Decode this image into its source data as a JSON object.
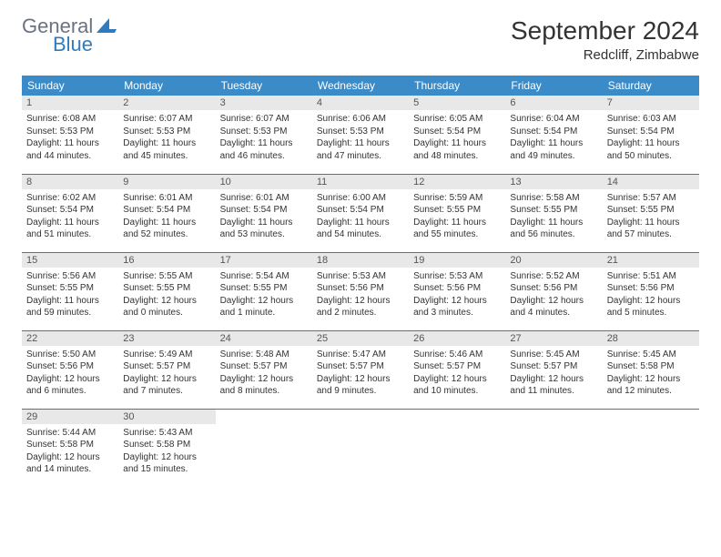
{
  "logo": {
    "text1": "General",
    "text2": "Blue"
  },
  "title": "September 2024",
  "location": "Redcliff, Zimbabwe",
  "colors": {
    "header_bg": "#3b8bc8",
    "header_text": "#ffffff",
    "daynum_bg": "#e8e8e8",
    "border": "#2f7bbf",
    "logo_gray": "#6b7280",
    "logo_blue": "#2f7bbf"
  },
  "day_labels": [
    "Sunday",
    "Monday",
    "Tuesday",
    "Wednesday",
    "Thursday",
    "Friday",
    "Saturday"
  ],
  "weeks": [
    [
      {
        "n": "1",
        "sr": "6:08 AM",
        "ss": "5:53 PM",
        "dl": "11 hours and 44 minutes."
      },
      {
        "n": "2",
        "sr": "6:07 AM",
        "ss": "5:53 PM",
        "dl": "11 hours and 45 minutes."
      },
      {
        "n": "3",
        "sr": "6:07 AM",
        "ss": "5:53 PM",
        "dl": "11 hours and 46 minutes."
      },
      {
        "n": "4",
        "sr": "6:06 AM",
        "ss": "5:53 PM",
        "dl": "11 hours and 47 minutes."
      },
      {
        "n": "5",
        "sr": "6:05 AM",
        "ss": "5:54 PM",
        "dl": "11 hours and 48 minutes."
      },
      {
        "n": "6",
        "sr": "6:04 AM",
        "ss": "5:54 PM",
        "dl": "11 hours and 49 minutes."
      },
      {
        "n": "7",
        "sr": "6:03 AM",
        "ss": "5:54 PM",
        "dl": "11 hours and 50 minutes."
      }
    ],
    [
      {
        "n": "8",
        "sr": "6:02 AM",
        "ss": "5:54 PM",
        "dl": "11 hours and 51 minutes."
      },
      {
        "n": "9",
        "sr": "6:01 AM",
        "ss": "5:54 PM",
        "dl": "11 hours and 52 minutes."
      },
      {
        "n": "10",
        "sr": "6:01 AM",
        "ss": "5:54 PM",
        "dl": "11 hours and 53 minutes."
      },
      {
        "n": "11",
        "sr": "6:00 AM",
        "ss": "5:54 PM",
        "dl": "11 hours and 54 minutes."
      },
      {
        "n": "12",
        "sr": "5:59 AM",
        "ss": "5:55 PM",
        "dl": "11 hours and 55 minutes."
      },
      {
        "n": "13",
        "sr": "5:58 AM",
        "ss": "5:55 PM",
        "dl": "11 hours and 56 minutes."
      },
      {
        "n": "14",
        "sr": "5:57 AM",
        "ss": "5:55 PM",
        "dl": "11 hours and 57 minutes."
      }
    ],
    [
      {
        "n": "15",
        "sr": "5:56 AM",
        "ss": "5:55 PM",
        "dl": "11 hours and 59 minutes."
      },
      {
        "n": "16",
        "sr": "5:55 AM",
        "ss": "5:55 PM",
        "dl": "12 hours and 0 minutes."
      },
      {
        "n": "17",
        "sr": "5:54 AM",
        "ss": "5:55 PM",
        "dl": "12 hours and 1 minute."
      },
      {
        "n": "18",
        "sr": "5:53 AM",
        "ss": "5:56 PM",
        "dl": "12 hours and 2 minutes."
      },
      {
        "n": "19",
        "sr": "5:53 AM",
        "ss": "5:56 PM",
        "dl": "12 hours and 3 minutes."
      },
      {
        "n": "20",
        "sr": "5:52 AM",
        "ss": "5:56 PM",
        "dl": "12 hours and 4 minutes."
      },
      {
        "n": "21",
        "sr": "5:51 AM",
        "ss": "5:56 PM",
        "dl": "12 hours and 5 minutes."
      }
    ],
    [
      {
        "n": "22",
        "sr": "5:50 AM",
        "ss": "5:56 PM",
        "dl": "12 hours and 6 minutes."
      },
      {
        "n": "23",
        "sr": "5:49 AM",
        "ss": "5:57 PM",
        "dl": "12 hours and 7 minutes."
      },
      {
        "n": "24",
        "sr": "5:48 AM",
        "ss": "5:57 PM",
        "dl": "12 hours and 8 minutes."
      },
      {
        "n": "25",
        "sr": "5:47 AM",
        "ss": "5:57 PM",
        "dl": "12 hours and 9 minutes."
      },
      {
        "n": "26",
        "sr": "5:46 AM",
        "ss": "5:57 PM",
        "dl": "12 hours and 10 minutes."
      },
      {
        "n": "27",
        "sr": "5:45 AM",
        "ss": "5:57 PM",
        "dl": "12 hours and 11 minutes."
      },
      {
        "n": "28",
        "sr": "5:45 AM",
        "ss": "5:58 PM",
        "dl": "12 hours and 12 minutes."
      }
    ],
    [
      {
        "n": "29",
        "sr": "5:44 AM",
        "ss": "5:58 PM",
        "dl": "12 hours and 14 minutes."
      },
      {
        "n": "30",
        "sr": "5:43 AM",
        "ss": "5:58 PM",
        "dl": "12 hours and 15 minutes."
      },
      null,
      null,
      null,
      null,
      null
    ]
  ],
  "labels": {
    "sunrise": "Sunrise:",
    "sunset": "Sunset:",
    "daylight": "Daylight:"
  }
}
